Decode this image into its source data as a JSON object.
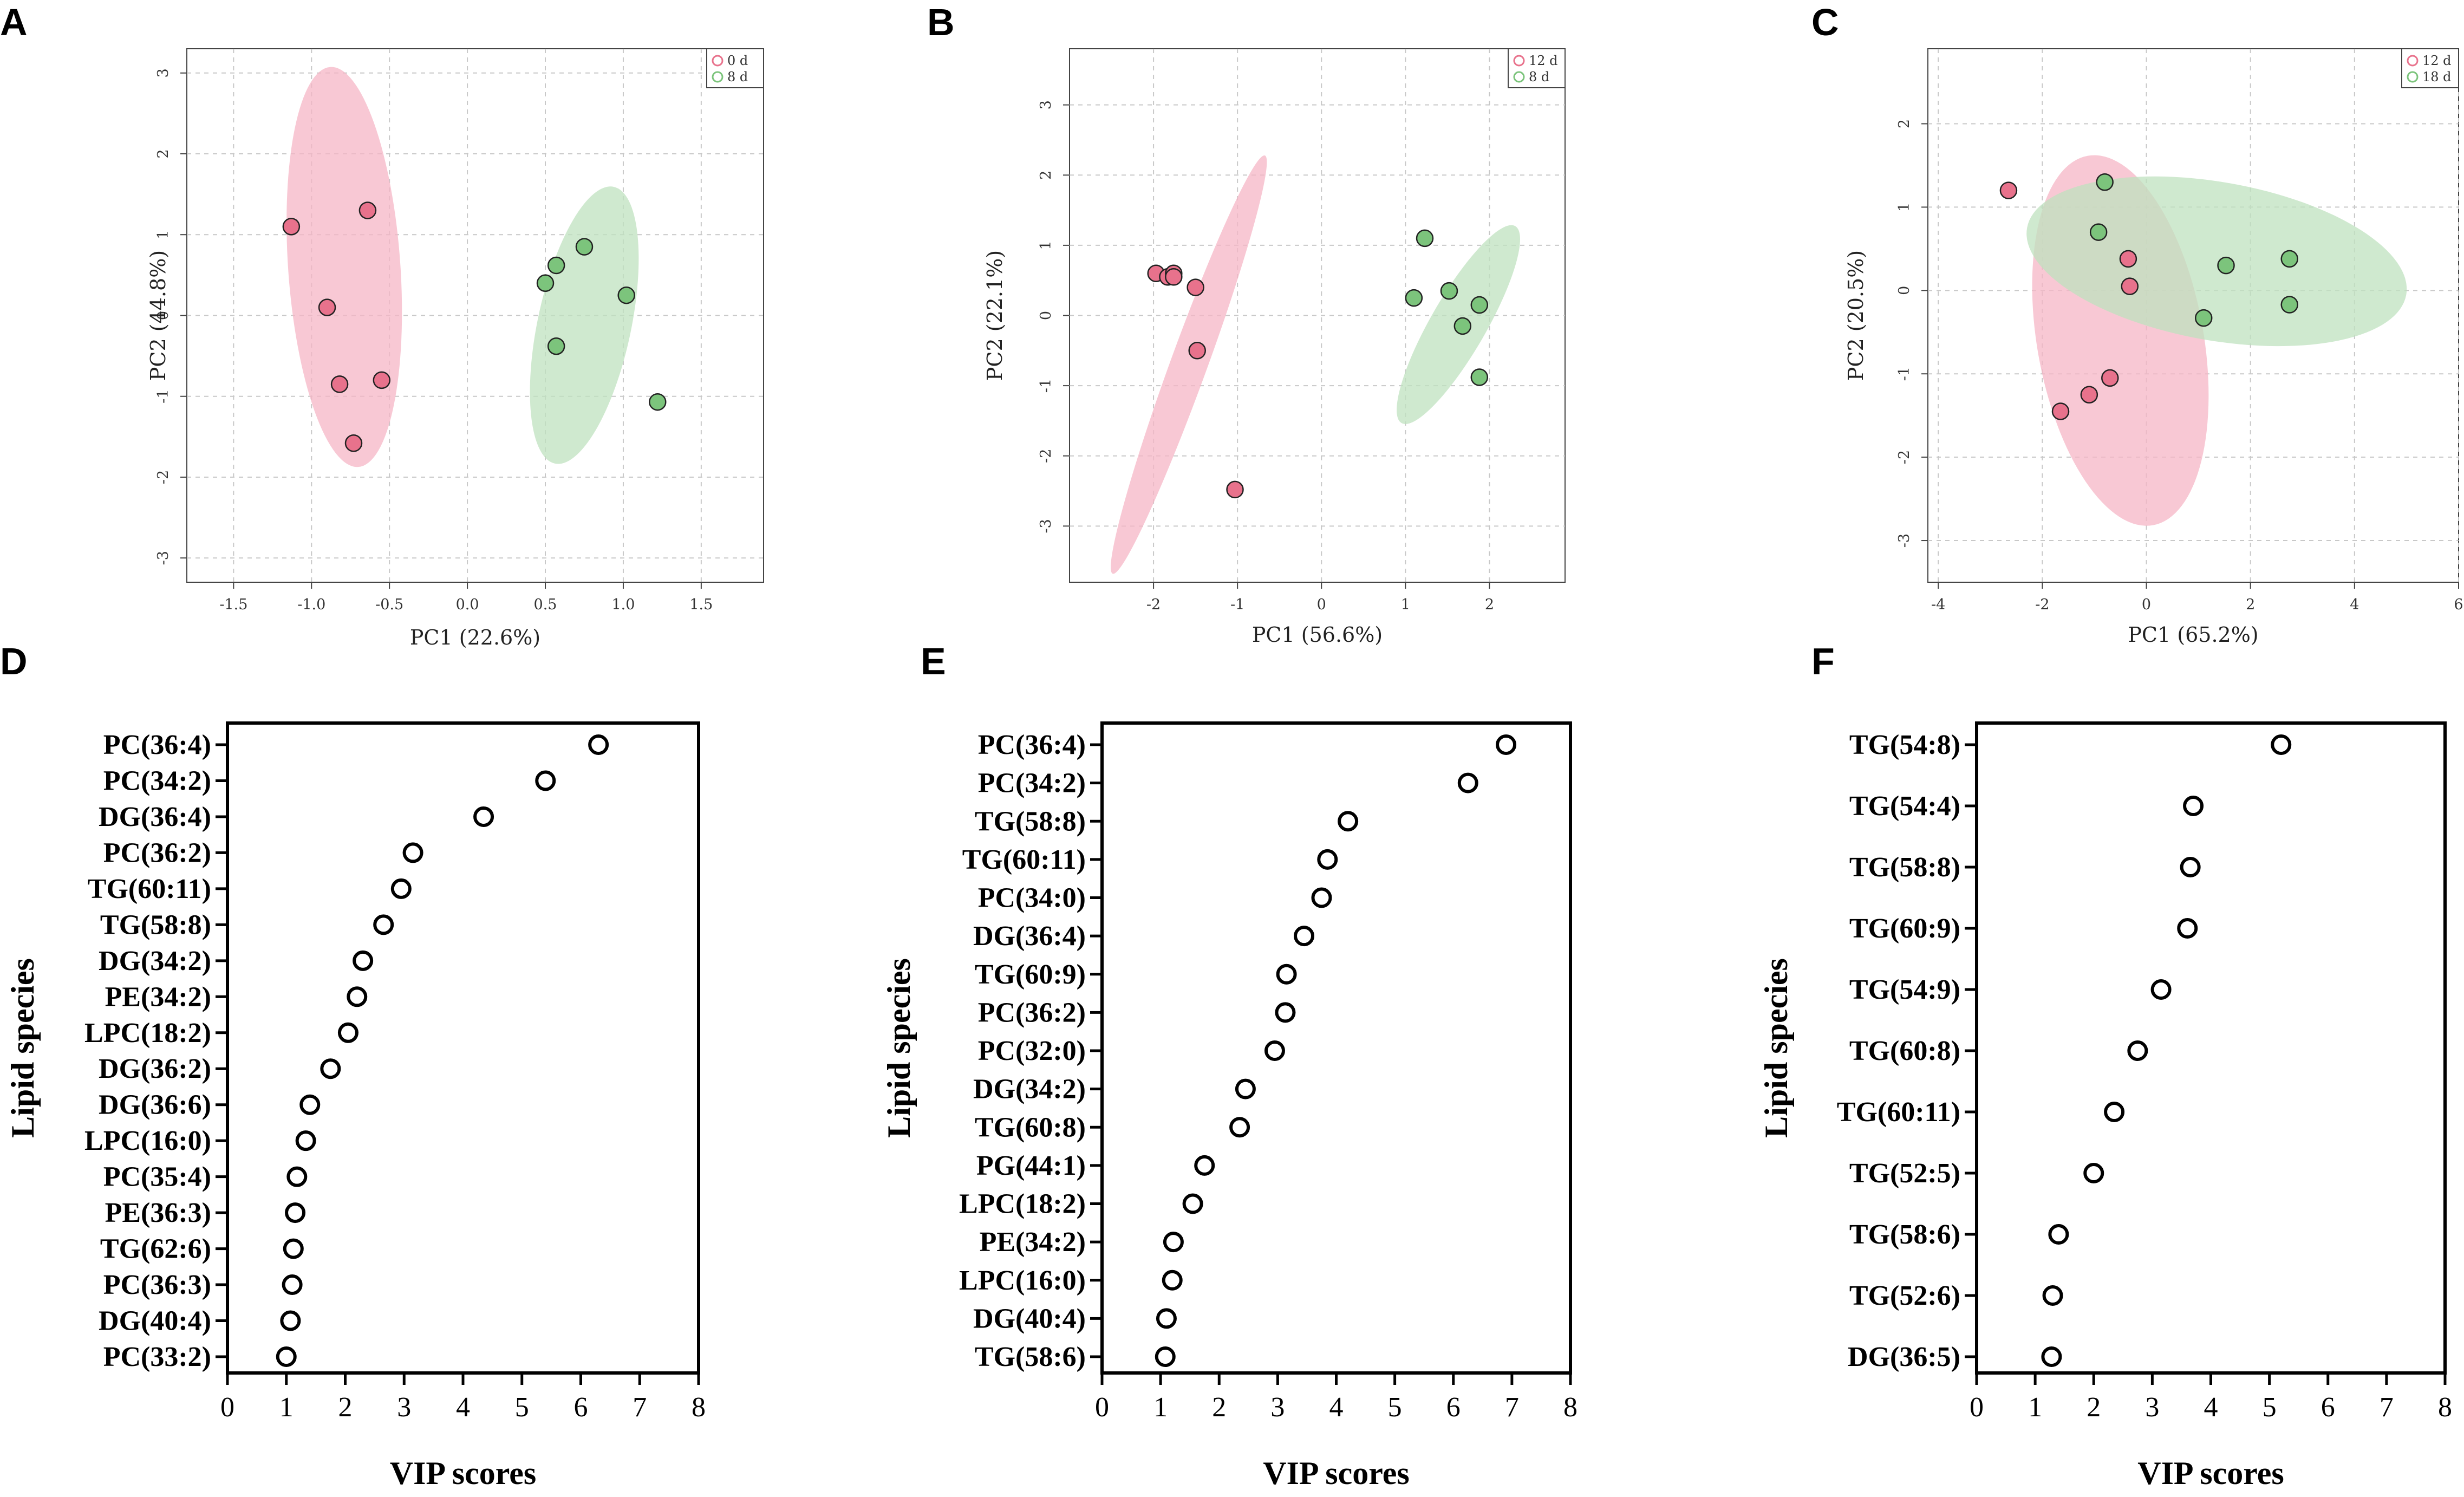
{
  "panel_letters": [
    "A",
    "B",
    "C",
    "D",
    "E",
    "F"
  ],
  "colors": {
    "group1": "#e8728c",
    "group2": "#7cc47c",
    "ellipse1": "#f6b6c6",
    "ellipse2": "#bfe2bf",
    "grid": "#c8c8c8"
  },
  "chart_data": [
    {
      "type": "scatter",
      "panel": "A",
      "xlabel": "PC1 (22.6%)",
      "ylabel": "PC2 (44.8%)",
      "xlim": [
        -1.8,
        1.9
      ],
      "ylim": [
        -3.3,
        3.3
      ],
      "xticks": [
        "-1.5",
        "-1.0",
        "-0.5",
        "0.0",
        "0.5",
        "1.0",
        "1.5"
      ],
      "xtickvals": [
        -1.5,
        -1.0,
        -0.5,
        0.0,
        0.5,
        1.0,
        1.5
      ],
      "yticks": [
        "-3",
        "-2",
        "-1",
        "0",
        "1",
        "2",
        "3"
      ],
      "ytickvals": [
        -3,
        -2,
        -1,
        0,
        1,
        2,
        3
      ],
      "legend": [
        "0 d",
        "8 d"
      ],
      "series": [
        {
          "name": "0 d",
          "points": [
            [
              -1.13,
              1.1
            ],
            [
              -0.64,
              1.3
            ],
            [
              -0.9,
              0.1
            ],
            [
              -0.82,
              -0.85
            ],
            [
              -0.55,
              -0.8
            ],
            [
              -0.73,
              -1.58
            ]
          ]
        },
        {
          "name": "8 d",
          "points": [
            [
              0.75,
              0.85
            ],
            [
              0.57,
              0.62
            ],
            [
              0.5,
              0.4
            ],
            [
              1.02,
              0.25
            ],
            [
              0.57,
              -0.38
            ],
            [
              1.22,
              -1.07
            ]
          ]
        }
      ],
      "ellipses": [
        {
          "cx": -0.79,
          "cy": 0.6,
          "rx": 0.36,
          "ry": 2.48,
          "rot": -4
        },
        {
          "cx": 0.75,
          "cy": -0.12,
          "rx": 0.3,
          "ry": 1.75,
          "rot": 12
        }
      ]
    },
    {
      "type": "scatter",
      "panel": "B",
      "xlabel": "PC1 (56.6%)",
      "ylabel": "PC2 (22.1%)",
      "xlim": [
        -3.0,
        2.9
      ],
      "ylim": [
        -3.8,
        3.8
      ],
      "xticks": [
        "-2",
        "-1",
        "0",
        "1",
        "2"
      ],
      "xtickvals": [
        -2,
        -1,
        0,
        1,
        2
      ],
      "yticks": [
        "-3",
        "-2",
        "-1",
        "0",
        "1",
        "2",
        "3"
      ],
      "ytickvals": [
        -3,
        -2,
        -1,
        0,
        1,
        2,
        3
      ],
      "legend": [
        "12 d",
        "8 d"
      ],
      "series": [
        {
          "name": "12 d",
          "points": [
            [
              -1.97,
              0.6
            ],
            [
              -1.83,
              0.55
            ],
            [
              -1.76,
              0.6
            ],
            [
              -1.76,
              0.55
            ],
            [
              -1.5,
              0.4
            ],
            [
              -1.48,
              -0.5
            ],
            [
              -1.03,
              -2.48
            ]
          ]
        },
        {
          "name": "8 d",
          "points": [
            [
              1.23,
              1.1
            ],
            [
              1.1,
              0.25
            ],
            [
              1.52,
              0.35
            ],
            [
              1.88,
              0.15
            ],
            [
              1.68,
              -0.15
            ],
            [
              1.88,
              -0.88
            ]
          ]
        }
      ],
      "ellipses": [
        {
          "cx": -1.58,
          "cy": -0.7,
          "rx": 0.22,
          "ry": 3.17,
          "rot": 20
        },
        {
          "cx": 1.63,
          "cy": -0.13,
          "rx": 0.33,
          "ry": 1.62,
          "rot": 30
        }
      ]
    },
    {
      "type": "scatter",
      "panel": "C",
      "xlabel": "PC1 (65.2%)",
      "ylabel": "PC2 (20.5%)",
      "xlim": [
        -4.2,
        6.0
      ],
      "ylim": [
        -3.5,
        2.9
      ],
      "xticks": [
        "-4",
        "-2",
        "0",
        "2",
        "4",
        "6"
      ],
      "xtickvals": [
        -4,
        -2,
        0,
        2,
        4,
        6
      ],
      "yticks": [
        "-3",
        "-2",
        "-1",
        "0",
        "1",
        "2"
      ],
      "ytickvals": [
        -3,
        -2,
        -1,
        0,
        1,
        2
      ],
      "legend": [
        "12 d",
        "18 d"
      ],
      "series": [
        {
          "name": "12 d",
          "points": [
            [
              -2.65,
              1.2
            ],
            [
              -0.35,
              0.38
            ],
            [
              -0.32,
              0.05
            ],
            [
              -0.7,
              -1.05
            ],
            [
              -1.1,
              -1.25
            ],
            [
              -1.65,
              -1.45
            ]
          ]
        },
        {
          "name": "18 d",
          "points": [
            [
              -0.8,
              1.3
            ],
            [
              -0.92,
              0.7
            ],
            [
              1.1,
              -0.33
            ],
            [
              1.53,
              0.3
            ],
            [
              2.75,
              0.38
            ],
            [
              2.75,
              -0.17
            ]
          ]
        }
      ],
      "ellipses": [
        {
          "cx": -0.5,
          "cy": -0.6,
          "rx": 1.6,
          "ry": 2.25,
          "rot": -10
        },
        {
          "cx": 1.35,
          "cy": 0.35,
          "rx": 3.7,
          "ry": 0.95,
          "rot": 10
        }
      ]
    },
    {
      "type": "scatter",
      "panel": "D",
      "xlabel": "VIP scores",
      "ylabel": "Lipid species",
      "xlim": [
        0,
        8
      ],
      "xticks": [
        "0",
        "1",
        "2",
        "3",
        "4",
        "5",
        "6",
        "7",
        "8"
      ],
      "labels": [
        "PC(36:4)",
        "PC(34:2)",
        "DG(36:4)",
        "PC(36:2)",
        "TG(60:11)",
        "TG(58:8)",
        "DG(34:2)",
        "PE(34:2)",
        "LPC(18:2)",
        "DG(36:2)",
        "DG(36:6)",
        "LPC(16:0)",
        "PC(35:4)",
        "PE(36:3)",
        "TG(62:6)",
        "PC(36:3)",
        "DG(40:4)",
        "PC(33:2)"
      ],
      "values": [
        6.3,
        5.4,
        4.35,
        3.15,
        2.95,
        2.65,
        2.3,
        2.2,
        2.05,
        1.75,
        1.4,
        1.33,
        1.18,
        1.15,
        1.12,
        1.1,
        1.07,
        1.0
      ]
    },
    {
      "type": "scatter",
      "panel": "E",
      "xlabel": "VIP scores",
      "ylabel": "Lipid species",
      "xlim": [
        0,
        8
      ],
      "xticks": [
        "0",
        "1",
        "2",
        "3",
        "4",
        "5",
        "6",
        "7",
        "8"
      ],
      "labels": [
        "PC(36:4)",
        "PC(34:2)",
        "TG(58:8)",
        "TG(60:11)",
        "PC(34:0)",
        "DG(36:4)",
        "TG(60:9)",
        "PC(36:2)",
        "PC(32:0)",
        "DG(34:2)",
        "TG(60:8)",
        "PG(44:1)",
        "LPC(18:2)",
        "PE(34:2)",
        "LPC(16:0)",
        "DG(40:4)",
        "TG(58:6)"
      ],
      "values": [
        6.9,
        6.25,
        4.2,
        3.85,
        3.75,
        3.45,
        3.15,
        3.13,
        2.95,
        2.45,
        2.35,
        1.75,
        1.55,
        1.22,
        1.2,
        1.1,
        1.08
      ]
    },
    {
      "type": "scatter",
      "panel": "F",
      "xlabel": "VIP scores",
      "ylabel": "Lipid species",
      "xlim": [
        0,
        8
      ],
      "xticks": [
        "0",
        "1",
        "2",
        "3",
        "4",
        "5",
        "6",
        "7",
        "8"
      ],
      "labels": [
        "TG(54:8)",
        "TG(54:4)",
        "TG(58:8)",
        "TG(60:9)",
        "TG(54:9)",
        "TG(60:8)",
        "TG(60:11)",
        "TG(52:5)",
        "TG(58:6)",
        "TG(52:6)",
        "DG(36:5)"
      ],
      "values": [
        5.2,
        3.7,
        3.65,
        3.6,
        3.15,
        2.75,
        2.35,
        2.0,
        1.4,
        1.3,
        1.28
      ]
    }
  ]
}
